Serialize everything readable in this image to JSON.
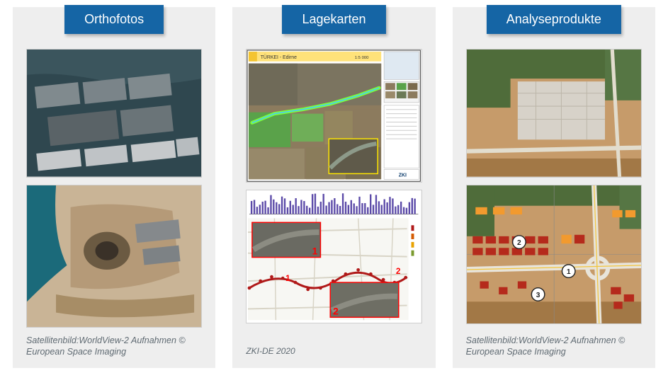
{
  "layout": {
    "page_bg": "#ffffff",
    "card_bg": "#eeeeee",
    "heading_bg": "#1565a5",
    "heading_fg": "#ffffff",
    "caption_color": "#5f6a72",
    "heading_fontsize": 18,
    "caption_fontsize": 12.5
  },
  "ortho": {
    "title": "Orthofotos",
    "caption": "Satellitenbild:WorldView-2 Aufnahmen © European Space Imaging",
    "img1": {
      "desc": "Aerial port with warehouses",
      "colors": {
        "water": "#2f474f",
        "building_roof": "#808a8e",
        "light_roof": "#c6c9cb",
        "ground": "#4c4a45"
      }
    },
    "img2": {
      "desc": "Aerial port after explosion, crater and debris",
      "colors": {
        "water": "#1b6a7a",
        "rubble_light": "#c9b496",
        "rubble_dark": "#6b5a42",
        "crater": "#3a3128"
      }
    }
  },
  "lage": {
    "title": "Lagekarten",
    "caption": "ZKI-DE 2020",
    "img1": {
      "desc": "Situation map TÜRKEI - Edirne, change detection",
      "title_text": "TÜRKEI - Edirne",
      "scale_text": "1:5 000",
      "logo_text": "ZKI",
      "colors": {
        "paper": "#ffffff",
        "border": "#333333",
        "title_bar": "#ffe27a",
        "field_green": "#5aa24a",
        "field_brown": "#8c7b5e",
        "highlight_green": "#7cff3c",
        "inset_border": "#ffe600",
        "legend_bg": "#f4f4f4"
      }
    },
    "img2": {
      "desc": "Route map with histogram and inset photos",
      "colors": {
        "paper": "#f7f7f3",
        "roads": "#d8d4c6",
        "route": "#b01919",
        "inset_border": "#ff0000",
        "hist_bar": "#5b4aa8",
        "hist_axis": "#888888"
      },
      "markers": [
        "1",
        "2"
      ],
      "hist": {
        "bars": 60,
        "min": 8,
        "max": 30
      }
    }
  },
  "analyse": {
    "title": "Analyseprodukte",
    "caption": "Satellitenbild:WorldView-2 Aufnahmen © European Space Imaging",
    "img1": {
      "desc": "Aerial of cleared construction site",
      "colors": {
        "soil": "#c69b6a",
        "soil_dark": "#a27846",
        "veg": "#4f6c3a",
        "paved": "#d7d2c9"
      }
    },
    "img2": {
      "desc": "Same site with building footprints and reference points",
      "colors": {
        "soil": "#c69b6a",
        "veg": "#4f6c3a",
        "road": "#e8e4da",
        "footprint_red": "#b52a1c",
        "footprint_orange": "#f29a2e",
        "circle_border": "#222222",
        "circle_fill": "#ffffff",
        "grid": "#888888"
      },
      "points": [
        "1",
        "2",
        "3"
      ]
    }
  }
}
